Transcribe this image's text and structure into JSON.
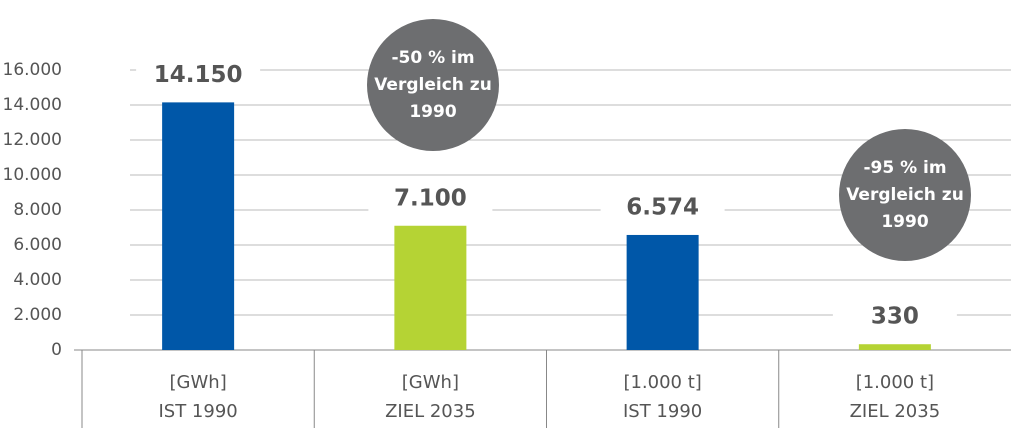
{
  "chart_data": {
    "type": "bar",
    "categories": [
      [
        "[GWh]",
        "IST 1990"
      ],
      [
        "[GWh]",
        "ZIEL 2035"
      ],
      [
        "[1.000 t]",
        "IST 1990"
      ],
      [
        "[1.000 t]",
        "ZIEL 2035"
      ]
    ],
    "values": [
      14150,
      7100,
      6574,
      330
    ],
    "value_labels": [
      "14.150",
      "7.100",
      "6.574",
      "330"
    ],
    "colors": [
      "#0057a8",
      "#b5d334",
      "#0057a8",
      "#b5d334"
    ],
    "ylim": [
      0,
      16000
    ],
    "yticks": [
      0,
      {
        "value": 2000,
        "label": "2.000"
      },
      {
        "value": 4000,
        "label": "4.000"
      },
      {
        "value": 6000,
        "label": "6.000"
      },
      {
        "value": 8000,
        "label": "8.000"
      },
      {
        "value": 10000,
        "label": "10.000"
      },
      {
        "value": 12000,
        "label": "12.000"
      },
      {
        "value": 14000,
        "label": "14.000"
      },
      {
        "value": 16000,
        "label": "16.000"
      }
    ],
    "grid": true,
    "annotations": [
      [
        "-50 % im",
        "Vergleich zu",
        "1990"
      ],
      [
        "-95 % im",
        "Vergleich zu",
        "1990"
      ]
    ]
  }
}
